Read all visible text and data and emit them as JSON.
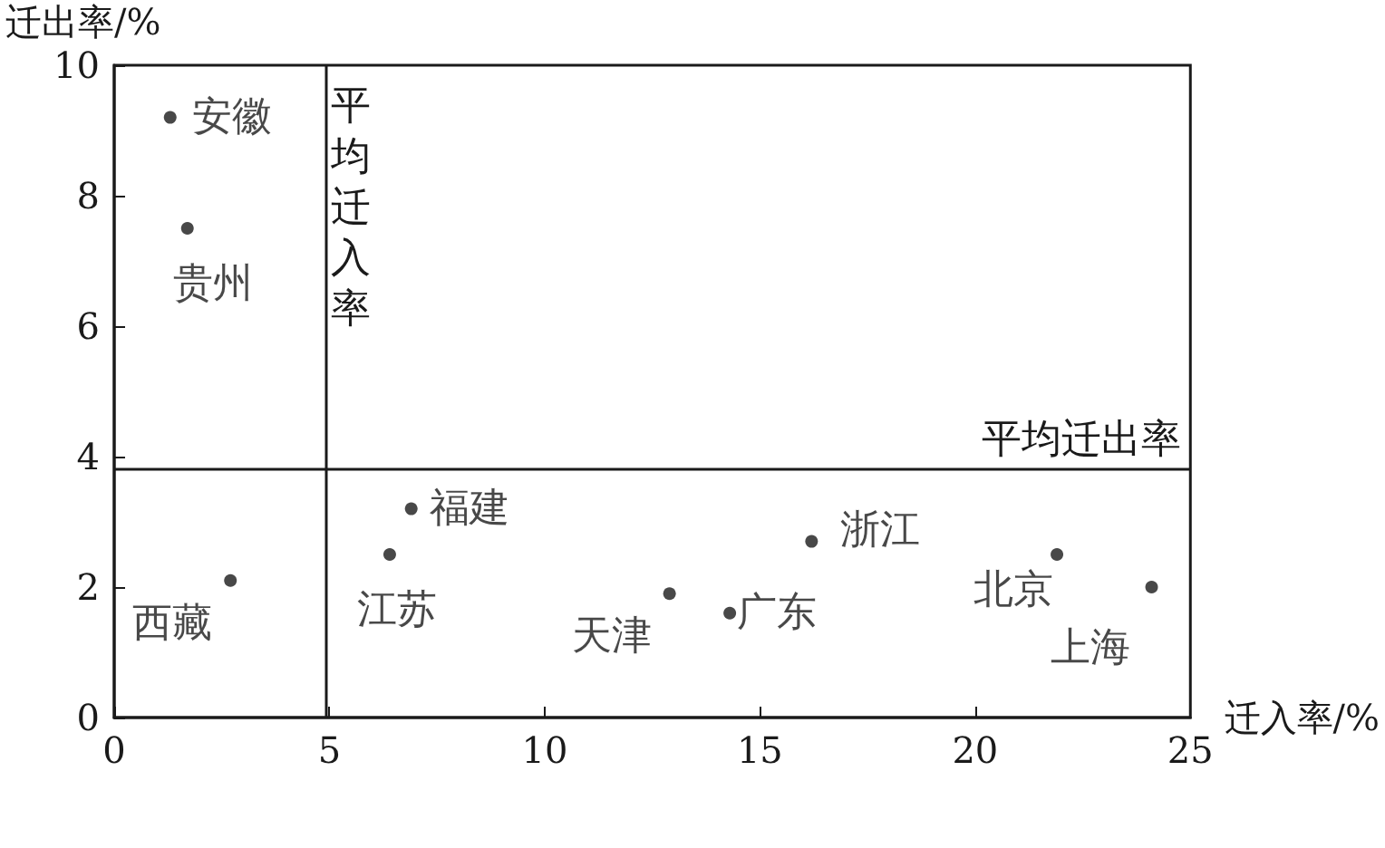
{
  "chart_data": {
    "type": "scatter",
    "xlabel": "迁入率/%",
    "ylabel": "迁出率/%",
    "x": [
      1.3,
      1.7,
      2.7,
      6.4,
      6.9,
      12.9,
      14.3,
      16.2,
      21.9,
      24.1
    ],
    "series": [
      {
        "color": "#1a1a1a",
        "values": [
          9.2,
          7.5,
          2.1,
          2.5,
          3.2,
          1.9,
          1.6,
          2.7,
          2.5,
          2.0
        ]
      }
    ],
    "annotations": [
      {
        "text": "安徽",
        "x": 1.3,
        "y": 9.2
      },
      {
        "text": "贵州",
        "x": 1.7,
        "y": 7.5
      },
      {
        "text": "西藏",
        "x": 2.7,
        "y": 2.1
      },
      {
        "text": "江苏",
        "x": 6.4,
        "y": 2.5
      },
      {
        "text": "福建",
        "x": 6.9,
        "y": 3.2
      },
      {
        "text": "天津",
        "x": 12.9,
        "y": 1.9
      },
      {
        "text": "广东",
        "x": 14.3,
        "y": 1.6
      },
      {
        "text": "浙江",
        "x": 16.2,
        "y": 2.7
      },
      {
        "text": "北京",
        "x": 21.9,
        "y": 2.5
      },
      {
        "text": "上海",
        "x": 24.1,
        "y": 2.0
      }
    ],
    "ref_lines": [
      {
        "axis": "x",
        "value": 4.9,
        "label": "平均迁入率",
        "color": "#1a1a1a"
      },
      {
        "axis": "y",
        "value": 3.8,
        "label": "平均迁出率",
        "color": "#1a1a1a"
      }
    ],
    "xlim": [
      0,
      25
    ],
    "xticks": [
      0,
      5,
      10,
      15,
      20,
      25
    ],
    "ylim": [
      0,
      10
    ],
    "yticks": [
      0,
      2,
      4,
      6,
      8,
      10
    ],
    "grid": false,
    "marker": "circle"
  }
}
